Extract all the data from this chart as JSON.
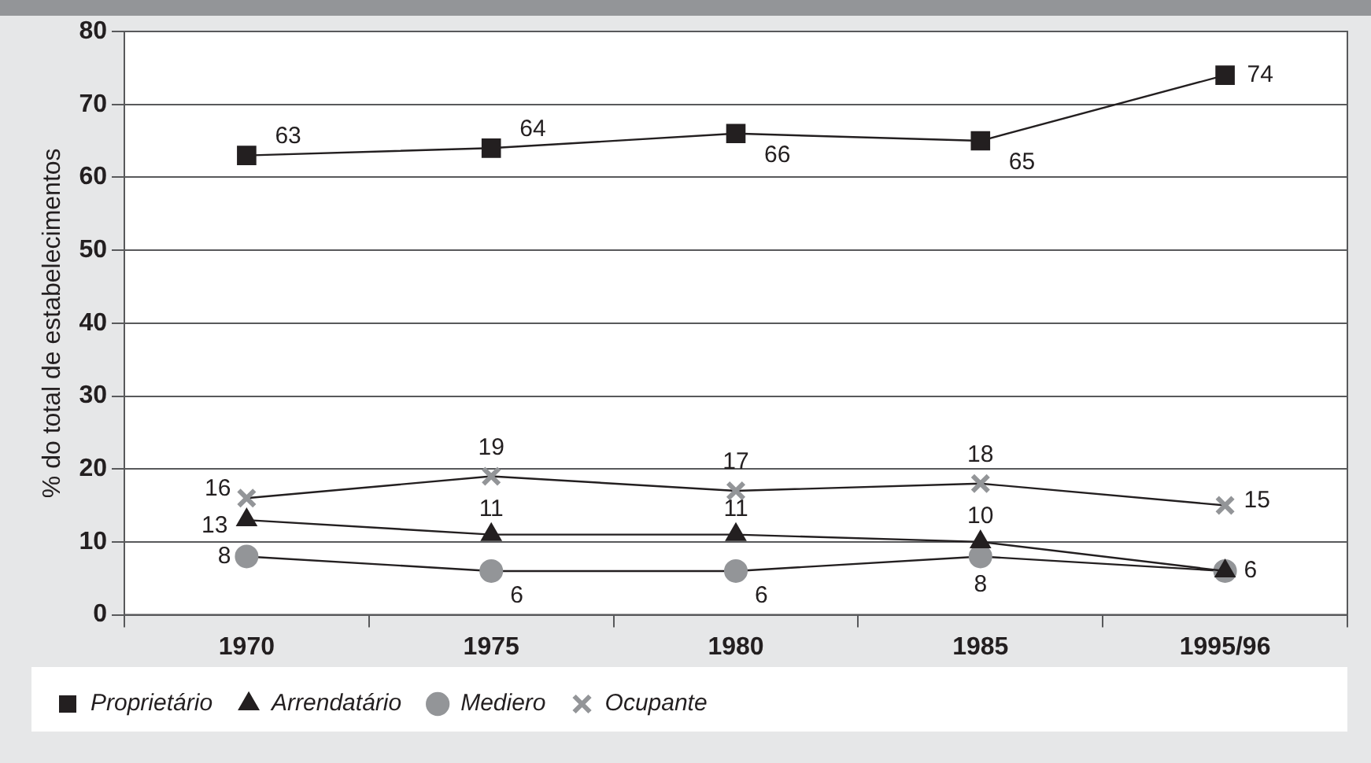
{
  "chart_data": {
    "type": "line",
    "ylabel": "% do total de estabelecimentos",
    "categories": [
      "1970",
      "1975",
      "1980",
      "1985",
      "1995/96"
    ],
    "series": [
      {
        "name": "Proprietário",
        "color": "#231f20",
        "marker": "square",
        "values": [
          63,
          64,
          66,
          65,
          74
        ],
        "value_labels": [
          "63",
          "64",
          "66",
          "65",
          "74"
        ]
      },
      {
        "name": "Arrendatário",
        "color": "#231f20",
        "marker": "triangle",
        "values": [
          13,
          11,
          11,
          10,
          6
        ],
        "value_labels": [
          "13",
          "11",
          "11",
          "10",
          "6"
        ]
      },
      {
        "name": "Mediero",
        "color": "#939598",
        "marker": "circle",
        "values": [
          8,
          6,
          6,
          8,
          6
        ],
        "value_labels": [
          "8",
          "6",
          "6",
          "8",
          null
        ]
      },
      {
        "name": "Ocupante",
        "color": "#939598",
        "marker": "cross",
        "values": [
          16,
          19,
          17,
          18,
          15
        ],
        "value_labels": [
          "16",
          "19",
          "17",
          "18",
          "15"
        ]
      }
    ],
    "ylim": [
      0,
      80
    ],
    "yticks": [
      0,
      10,
      20,
      30,
      40,
      50,
      60,
      70,
      80
    ],
    "grid": "y",
    "legend": "bottom",
    "line_style": "solid"
  }
}
